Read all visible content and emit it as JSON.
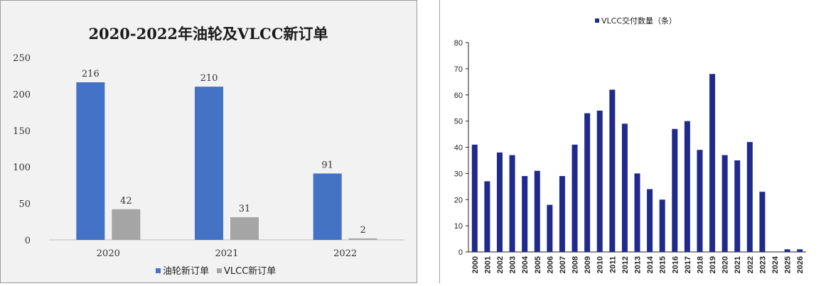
{
  "chart_data": [
    {
      "type": "bar",
      "title": "2020-2022年油轮及VLCC新订单",
      "categories": [
        "2020",
        "2021",
        "2022"
      ],
      "series": [
        {
          "name": "油轮新订单",
          "values": [
            216,
            210,
            91
          ],
          "color": "#4472c4"
        },
        {
          "name": "VLCC新订单",
          "values": [
            42,
            31,
            2
          ],
          "color": "#a5a5a5"
        }
      ],
      "data_labels": {
        "s0": [
          "216",
          "210",
          "91"
        ],
        "s1": [
          "42",
          "31",
          "2"
        ]
      },
      "ylim": [
        0,
        250
      ],
      "yticks": [
        0,
        50,
        100,
        150,
        200,
        250
      ],
      "ytick_labels": [
        "0",
        "50",
        "100",
        "150",
        "200",
        "250"
      ],
      "grid": false,
      "legend": "bottom",
      "xlabel": "",
      "ylabel": ""
    },
    {
      "type": "bar",
      "categories": [
        "2000",
        "2001",
        "2002",
        "2003",
        "2004",
        "2005",
        "2006",
        "2007",
        "2008",
        "2009",
        "2010",
        "2011",
        "2012",
        "2013",
        "2014",
        "2015",
        "2016",
        "2017",
        "2018",
        "2019",
        "2020",
        "2021",
        "2022",
        "2023",
        "2024",
        "2025",
        "2026"
      ],
      "series": [
        {
          "name": "VLCC交付数量（条）",
          "values": [
            41,
            27,
            38,
            37,
            29,
            31,
            18,
            29,
            41,
            53,
            54,
            62,
            49,
            30,
            24,
            20,
            47,
            50,
            39,
            68,
            37,
            35,
            42,
            23,
            0,
            1,
            1
          ],
          "color": "#1f2a8c"
        }
      ],
      "ylim": [
        0,
        80
      ],
      "yticks": [
        0,
        10,
        20,
        30,
        40,
        50,
        60,
        70,
        80
      ],
      "ytick_labels": [
        "0",
        "10",
        "20",
        "30",
        "40",
        "50",
        "60",
        "70",
        "80"
      ],
      "grid": false,
      "legend": "top",
      "xlabel": "",
      "ylabel": ""
    }
  ]
}
